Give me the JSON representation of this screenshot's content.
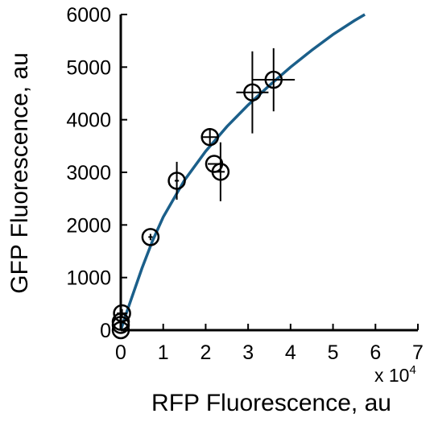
{
  "chart_data": {
    "type": "scatter",
    "title": "",
    "xlabel": "RFP Fluorescence, au",
    "ylabel": "GFP Fluorescence, au",
    "x_multiplier": {
      "base": "x 10",
      "exponent": "4"
    },
    "xlim": [
      0,
      7
    ],
    "ylim": [
      0,
      6000
    ],
    "x_ticks": [
      0,
      1,
      2,
      3,
      4,
      5,
      6,
      7
    ],
    "y_ticks": [
      0,
      1000,
      2000,
      3000,
      4000,
      5000,
      6000
    ],
    "x_tick_labels": [
      "0",
      "1",
      "2",
      "3",
      "4",
      "5",
      "6",
      "7"
    ],
    "y_tick_labels": [
      "0",
      "1000",
      "2000",
      "3000",
      "4000",
      "5000",
      "6000"
    ],
    "grid": false,
    "legend": "none",
    "colors": {
      "fit_line": "#1b5f8a",
      "markers": "#000000",
      "axes": "#000000"
    },
    "series": [
      {
        "type": "scatter",
        "marker": "open-circle",
        "points": [
          {
            "x": 0.0,
            "y": 0,
            "x_err": 0.0,
            "y_err": 0
          },
          {
            "x": 0.0,
            "y": 100,
            "x_err": 0.0,
            "y_err": 0
          },
          {
            "x": 0.0,
            "y": 160,
            "x_err": 0.0,
            "y_err": 0
          },
          {
            "x": 0.03,
            "y": 320,
            "x_err": 0.12,
            "y_err": 80
          },
          {
            "x": 0.7,
            "y": 1770,
            "x_err": 0.05,
            "y_err": 60
          },
          {
            "x": 1.32,
            "y": 2840,
            "x_err": 0.05,
            "y_err": 360
          },
          {
            "x": 2.1,
            "y": 3670,
            "x_err": 0.2,
            "y_err": 170
          },
          {
            "x": 2.2,
            "y": 3160,
            "x_err": 0.15,
            "y_err": 0
          },
          {
            "x": 2.35,
            "y": 3010,
            "x_err": 0.1,
            "y_err": 560
          },
          {
            "x": 3.1,
            "y": 4520,
            "x_err": 0.38,
            "y_err": 780
          },
          {
            "x": 3.6,
            "y": 4760,
            "x_err": 0.5,
            "y_err": 600
          }
        ]
      },
      {
        "type": "line",
        "curve": [
          {
            "x": 0.0,
            "y": 0
          },
          {
            "x": 0.1,
            "y": 250
          },
          {
            "x": 0.25,
            "y": 600
          },
          {
            "x": 0.5,
            "y": 1180
          },
          {
            "x": 0.75,
            "y": 1700
          },
          {
            "x": 1.0,
            "y": 2150
          },
          {
            "x": 1.5,
            "y": 2850
          },
          {
            "x": 2.0,
            "y": 3400
          },
          {
            "x": 2.5,
            "y": 3870
          },
          {
            "x": 3.0,
            "y": 4280
          },
          {
            "x": 3.5,
            "y": 4650
          },
          {
            "x": 4.0,
            "y": 5000
          },
          {
            "x": 4.5,
            "y": 5320
          },
          {
            "x": 5.0,
            "y": 5620
          },
          {
            "x": 5.5,
            "y": 5880
          },
          {
            "x": 5.75,
            "y": 6000
          }
        ]
      }
    ]
  }
}
